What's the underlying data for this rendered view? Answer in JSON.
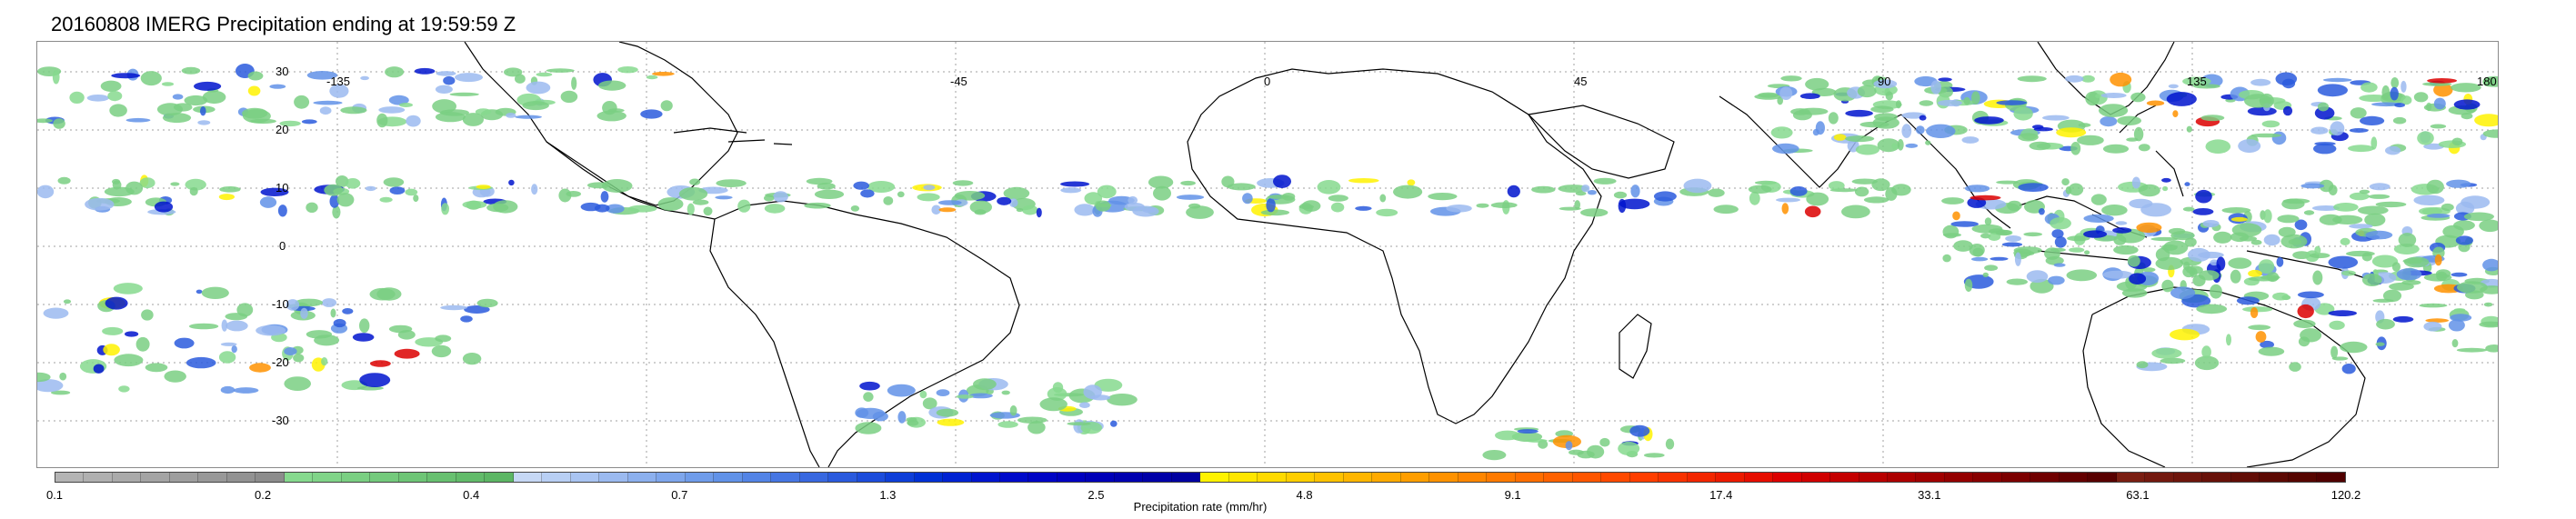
{
  "title": "20160808 IMERG Precipitation ending at 19:59:59 Z",
  "map": {
    "lon_labels": [
      "-135",
      "-45",
      "0",
      "45",
      "90",
      "135",
      "180"
    ],
    "lat_labels": [
      "30",
      "20",
      "10",
      "0",
      "-10",
      "-20",
      "-30"
    ],
    "gridline_style": "dotted grey",
    "coastline_color": "#000000"
  },
  "colorbar": {
    "label": "Precipitation rate (mm/hr)",
    "ticks": [
      "0.1",
      "0.2",
      "0.4",
      "0.7",
      "1.3",
      "2.5",
      "4.8",
      "9.1",
      "17.4",
      "33.1",
      "63.1",
      "120.2"
    ],
    "colors": [
      "#b4b4b4",
      "#b0b0b0",
      "#aaaaaa",
      "#a4a4a4",
      "#9e9e9e",
      "#989898",
      "#929292",
      "#8c8c8c",
      "#86d98e",
      "#80d488",
      "#7acf82",
      "#74ca7c",
      "#6ec576",
      "#68c070",
      "#62bb6a",
      "#5cb664",
      "#c6d8f5",
      "#b8cff4",
      "#a9c4f2",
      "#9bbaf0",
      "#8cb0ee",
      "#7ea6ec",
      "#6f9cea",
      "#6192e8",
      "#5384e6",
      "#4676e3",
      "#3868e0",
      "#2a5add",
      "#1c4cdb",
      "#0e3ed8",
      "#0030d5",
      "#0022d2",
      "#0014ce",
      "#000aca",
      "#0004c5",
      "#0000c0",
      "#0000b8",
      "#0000b0",
      "#0000a8",
      "#0000a0",
      "#fff200",
      "#ffe600",
      "#ffda00",
      "#ffce00",
      "#ffc200",
      "#ffb600",
      "#ffaa00",
      "#ff9e00",
      "#ff9200",
      "#ff8600",
      "#ff7a00",
      "#ff6e00",
      "#ff6200",
      "#ff5600",
      "#ff4a00",
      "#ff3e00",
      "#f83200",
      "#f22600",
      "#ec1a00",
      "#e60e00",
      "#dc0000",
      "#d00000",
      "#c40000",
      "#b80000",
      "#ac0000",
      "#a00000",
      "#940000",
      "#880000",
      "#7c0000",
      "#700000",
      "#640000",
      "#580000",
      "#7a1e12",
      "#74190f",
      "#6e150c",
      "#681109",
      "#620d06",
      "#5c0903",
      "#560500",
      "#500000"
    ]
  }
}
